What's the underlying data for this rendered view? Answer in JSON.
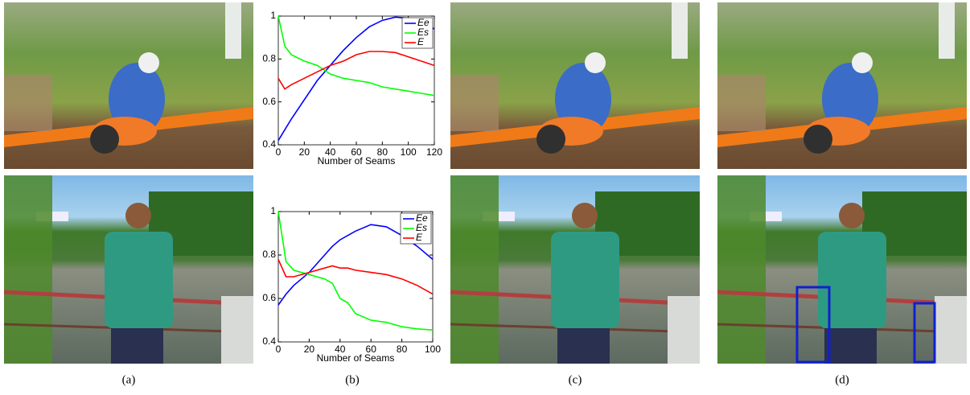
{
  "chart_data": [
    {
      "type": "line",
      "xlabel": "Number of Seams",
      "x": [
        0,
        5,
        10,
        20,
        30,
        40,
        50,
        60,
        70,
        80,
        90,
        100,
        110,
        120
      ],
      "xlim": [
        0,
        120
      ],
      "xticks": [
        0,
        20,
        40,
        60,
        80,
        100,
        120
      ],
      "ylim": [
        0.4,
        1
      ],
      "yticks": [
        0.4,
        0.6,
        0.8,
        1
      ],
      "legend": "upper right",
      "series": [
        {
          "name": "Ee",
          "color": "#0000ff",
          "values": [
            0.42,
            0.47,
            0.52,
            0.61,
            0.7,
            0.77,
            0.84,
            0.9,
            0.95,
            0.98,
            0.995,
            0.99,
            0.97,
            0.94
          ]
        },
        {
          "name": "Es",
          "color": "#00ff00",
          "values": [
            1.0,
            0.86,
            0.82,
            0.79,
            0.77,
            0.73,
            0.71,
            0.7,
            0.69,
            0.67,
            0.66,
            0.65,
            0.64,
            0.63
          ]
        },
        {
          "name": "E",
          "color": "#ff0000",
          "values": [
            0.71,
            0.66,
            0.68,
            0.71,
            0.74,
            0.77,
            0.79,
            0.82,
            0.835,
            0.835,
            0.83,
            0.81,
            0.79,
            0.77
          ]
        }
      ]
    },
    {
      "type": "line",
      "xlabel": "Number of Seams",
      "x": [
        0,
        5,
        10,
        20,
        30,
        35,
        40,
        45,
        50,
        60,
        70,
        80,
        90,
        100
      ],
      "xlim": [
        0,
        100
      ],
      "xticks": [
        0,
        20,
        40,
        60,
        80,
        100
      ],
      "ylim": [
        0.4,
        1
      ],
      "yticks": [
        0.4,
        0.6,
        0.8,
        1
      ],
      "legend": "upper right",
      "series": [
        {
          "name": "Ee",
          "color": "#0000ff",
          "values": [
            0.57,
            0.62,
            0.66,
            0.72,
            0.8,
            0.84,
            0.87,
            0.89,
            0.91,
            0.94,
            0.93,
            0.89,
            0.84,
            0.78
          ]
        },
        {
          "name": "Es",
          "color": "#00ff00",
          "values": [
            1.0,
            0.77,
            0.73,
            0.71,
            0.69,
            0.67,
            0.6,
            0.58,
            0.53,
            0.5,
            0.49,
            0.47,
            0.46,
            0.455
          ]
        },
        {
          "name": "E",
          "color": "#ff0000",
          "values": [
            0.78,
            0.7,
            0.7,
            0.72,
            0.74,
            0.75,
            0.74,
            0.74,
            0.73,
            0.72,
            0.71,
            0.69,
            0.66,
            0.62
          ]
        }
      ]
    }
  ],
  "captions": [
    "(a)",
    "(b)",
    "(c)",
    "(d)"
  ]
}
